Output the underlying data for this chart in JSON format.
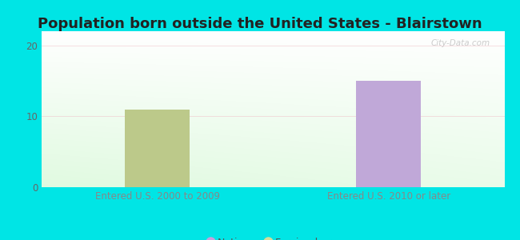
{
  "title": "Population born outside the United States - Blairstown",
  "categories": [
    "Entered U.S. 2000 to 2009",
    "Entered U.S. 2010 or later"
  ],
  "values": [
    11,
    15
  ],
  "bar_colors": [
    "#bcc98a",
    "#c0a8d8"
  ],
  "ylim": [
    0,
    22
  ],
  "yticks": [
    0,
    10,
    20
  ],
  "background_color": "#00e5e5",
  "title_fontsize": 13,
  "title_color": "#222222",
  "tick_label_fontsize": 8.5,
  "xlabel_color": "#888888",
  "legend_native_color": "#c9a0dc",
  "legend_foreign_color": "#d4dd99",
  "watermark": "City-Data.com",
  "bar_width": 0.28
}
